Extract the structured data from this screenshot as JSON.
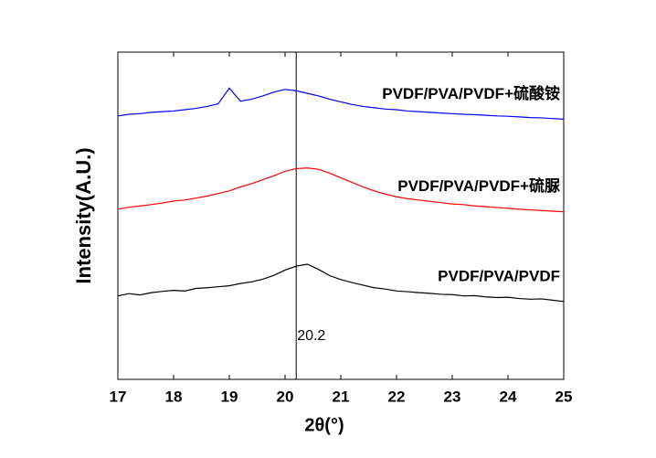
{
  "chart_data": {
    "type": "line",
    "xlabel": "2θ(°)",
    "ylabel": "Intensity(A.U.)",
    "x": [
      17,
      17.2,
      17.4,
      17.6,
      17.8,
      18,
      18.2,
      18.4,
      18.6,
      18.8,
      19,
      19.2,
      19.4,
      19.6,
      19.8,
      20,
      20.2,
      20.4,
      20.6,
      20.8,
      21,
      21.2,
      21.4,
      21.6,
      21.8,
      22,
      22.2,
      22.4,
      22.6,
      22.8,
      23,
      23.2,
      23.4,
      23.6,
      23.8,
      24,
      24.2,
      24.4,
      24.6,
      24.8,
      25
    ],
    "series": [
      {
        "name": "PVDF/PVA/PVDF+硫酸铵",
        "color": "#0000ff",
        "values": [
          80.5,
          81.0,
          81.2,
          81.6,
          81.8,
          82.0,
          82.4,
          82.8,
          83.4,
          84.2,
          89.0,
          85.0,
          85.6,
          86.6,
          87.8,
          88.6,
          88.2,
          87.4,
          86.6,
          85.6,
          84.8,
          84.0,
          83.4,
          83.0,
          82.6,
          82.4,
          82.0,
          81.8,
          81.6,
          81.4,
          81.2,
          81.0,
          80.9,
          80.7,
          80.5,
          80.4,
          80.2,
          80.0,
          79.9,
          79.7,
          79.5
        ]
      },
      {
        "name": "PVDF/PVA/PVDF+硫脲",
        "color": "#ff0000",
        "values": [
          52.0,
          52.6,
          53.0,
          53.4,
          53.9,
          54.5,
          54.8,
          55.4,
          56.0,
          56.8,
          57.6,
          58.8,
          59.8,
          61.0,
          62.2,
          63.6,
          64.4,
          64.6,
          64.2,
          63.0,
          61.6,
          60.2,
          58.8,
          57.6,
          56.6,
          55.8,
          55.2,
          54.8,
          54.4,
          54.0,
          53.6,
          53.4,
          53.0,
          52.8,
          52.5,
          52.3,
          52.0,
          51.8,
          51.6,
          51.4,
          51.2
        ]
      },
      {
        "name": "PVDF/PVA/PVDF",
        "color": "#000000",
        "values": [
          25.5,
          26.2,
          25.8,
          26.5,
          26.9,
          27.2,
          27.0,
          27.8,
          28.0,
          28.3,
          28.6,
          29.3,
          29.8,
          30.6,
          31.8,
          33.4,
          34.6,
          35.2,
          33.6,
          31.7,
          30.5,
          29.6,
          28.8,
          28.0,
          27.6,
          27.0,
          26.8,
          26.5,
          26.3,
          26.0,
          25.9,
          25.5,
          25.6,
          25.2,
          25.0,
          25.1,
          24.7,
          24.5,
          24.6,
          24.2,
          23.8
        ]
      }
    ],
    "vline": 20.2,
    "xlim": [
      17,
      25
    ],
    "xticks": [
      17,
      18,
      19,
      20,
      21,
      22,
      23,
      24,
      25
    ],
    "ylim": [
      0,
      100
    ]
  }
}
